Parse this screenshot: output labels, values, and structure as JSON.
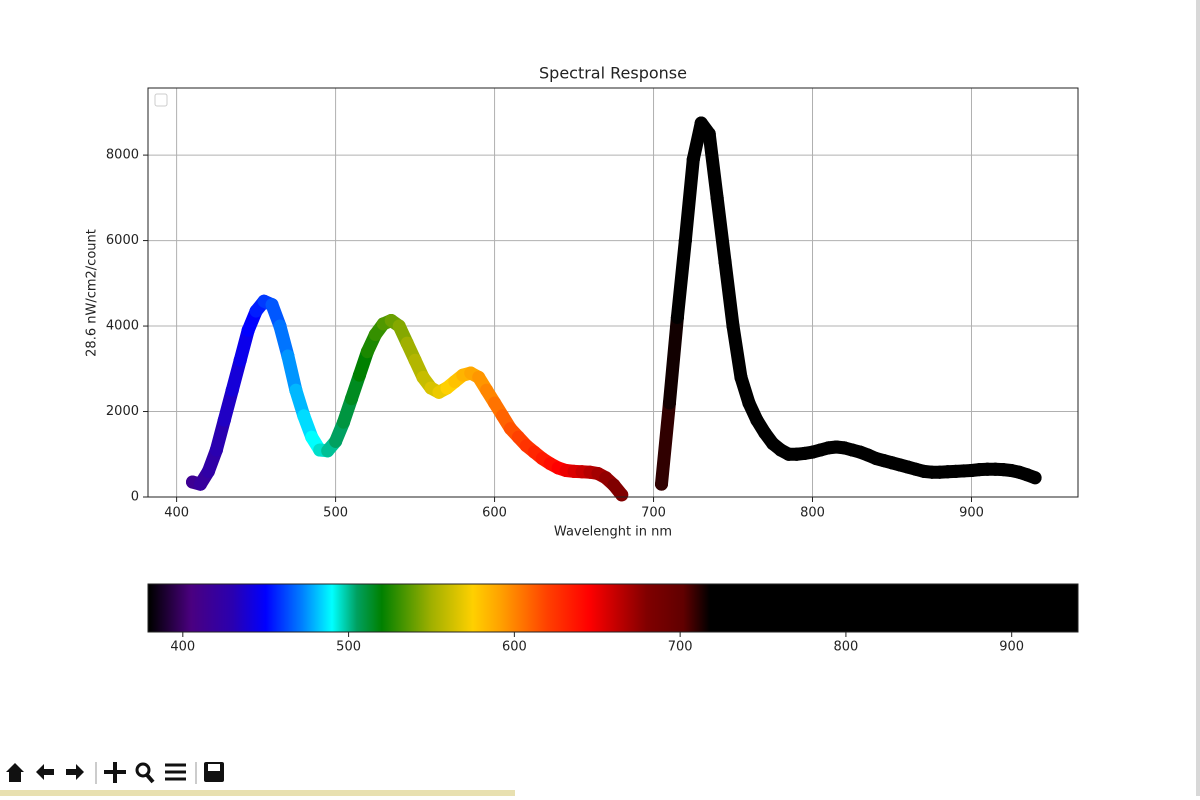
{
  "chart_data": [
    {
      "type": "scatter",
      "title": "Spectral Response",
      "x_label": "Wavelenght in nm",
      "y_label": "28.6 nW/cm2/count",
      "x": [
        410,
        415,
        420,
        425,
        430,
        435,
        440,
        445,
        450,
        455,
        460,
        465,
        470,
        475,
        480,
        485,
        490,
        495,
        500,
        505,
        510,
        515,
        520,
        525,
        530,
        535,
        540,
        545,
        550,
        555,
        560,
        565,
        570,
        575,
        580,
        585,
        590,
        595,
        600,
        605,
        610,
        615,
        620,
        625,
        630,
        635,
        640,
        645,
        650,
        655,
        660,
        665,
        670,
        675,
        680,
        685,
        690,
        695,
        700,
        705,
        710,
        715,
        720,
        725,
        730,
        735,
        740,
        745,
        750,
        755,
        760,
        765,
        770,
        775,
        780,
        785,
        790,
        795,
        800,
        805,
        810,
        815,
        820,
        825,
        830,
        835,
        840,
        845,
        850,
        855,
        860,
        865,
        870,
        875,
        880,
        885,
        890,
        895,
        900,
        905,
        910,
        915,
        920,
        925,
        930,
        935,
        940
      ],
      "series": [
        {
          "values": [
            350,
            300,
            600,
            1100,
            1800,
            2500,
            3200,
            3900,
            4350,
            4580,
            4500,
            4000,
            3300,
            2500,
            1900,
            1400,
            1100,
            1080,
            1300,
            1750,
            2300,
            2850,
            3400,
            3800,
            4050,
            4130,
            4000,
            3600,
            3200,
            2800,
            2550,
            2450,
            2550,
            2700,
            2850,
            2900,
            2800,
            2500,
            2200,
            1900,
            1600,
            1400,
            1200,
            1050,
            900,
            780,
            680,
            620,
            600,
            590,
            580,
            550,
            450,
            280,
            50,
            null,
            null,
            null,
            null,
            300,
            2200,
            4200,
            6000,
            7900,
            8750,
            8500,
            7000,
            5500,
            4000,
            2800,
            2200,
            1800,
            1500,
            1250,
            1100,
            1000,
            1000,
            1020,
            1050,
            1100,
            1150,
            1170,
            1150,
            1100,
            1050,
            980,
            900,
            850,
            800,
            750,
            700,
            650,
            600,
            580,
            580,
            590,
            600,
            610,
            620,
            640,
            650,
            650,
            640,
            620,
            580,
            520,
            450
          ]
        }
      ],
      "xlim": [
        382,
        967
      ],
      "ylim": [
        0,
        9570
      ],
      "xticks": [
        400,
        500,
        600,
        700,
        800,
        900
      ],
      "yticks": [
        0,
        2000,
        4000,
        6000,
        8000
      ],
      "grid": true
    },
    {
      "type": "colorbar",
      "xlim": [
        379,
        940
      ],
      "xticks": [
        400,
        500,
        600,
        700,
        800,
        900
      ],
      "colormap": [
        {
          "value": 380,
          "color": "#000000"
        },
        {
          "value": 405,
          "color": "#4a0080"
        },
        {
          "value": 430,
          "color": "#2a00b0"
        },
        {
          "value": 450,
          "color": "#0000ff"
        },
        {
          "value": 472,
          "color": "#0080ff"
        },
        {
          "value": 490,
          "color": "#00ffff"
        },
        {
          "value": 505,
          "color": "#00a060"
        },
        {
          "value": 520,
          "color": "#008000"
        },
        {
          "value": 550,
          "color": "#a0b000"
        },
        {
          "value": 575,
          "color": "#ffd000"
        },
        {
          "value": 592,
          "color": "#ffa000"
        },
        {
          "value": 620,
          "color": "#ff4000"
        },
        {
          "value": 645,
          "color": "#ff0000"
        },
        {
          "value": 680,
          "color": "#800000"
        },
        {
          "value": 702,
          "color": "#600000"
        },
        {
          "value": 718,
          "color": "#000000"
        },
        {
          "value": 940,
          "color": "#000000"
        }
      ]
    }
  ]
}
